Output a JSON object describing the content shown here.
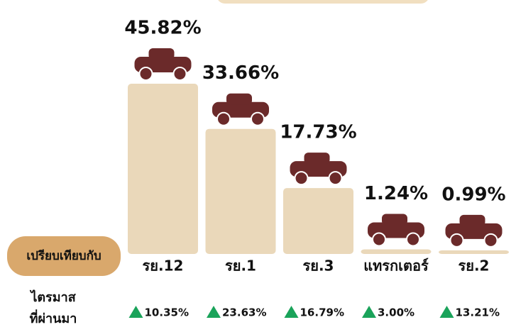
{
  "chart_data": {
    "type": "bar",
    "categories": [
      "รย.12",
      "รย.1",
      "รย.3",
      "แทรกเตอร์",
      "รย.2"
    ],
    "values": [
      45.82,
      33.66,
      17.73,
      1.24,
      0.99
    ],
    "value_labels": [
      "45.82%",
      "33.66%",
      "17.73%",
      "1.24%",
      "0.99%"
    ],
    "color": "#ead8ba",
    "icon_color": "#6b2a2a",
    "compare_label": "เปรียบเทียบกับ",
    "change_label": [
      "ไตรมาส",
      "ที่ผ่านมา"
    ],
    "changes": {
      "values": [
        10.35,
        23.63,
        16.79,
        3.0,
        13.21
      ],
      "value_labels": [
        "10.35%",
        "23.63%",
        "16.79%",
        "3.00%",
        "13.21%"
      ],
      "color": "#1aa35a"
    }
  }
}
